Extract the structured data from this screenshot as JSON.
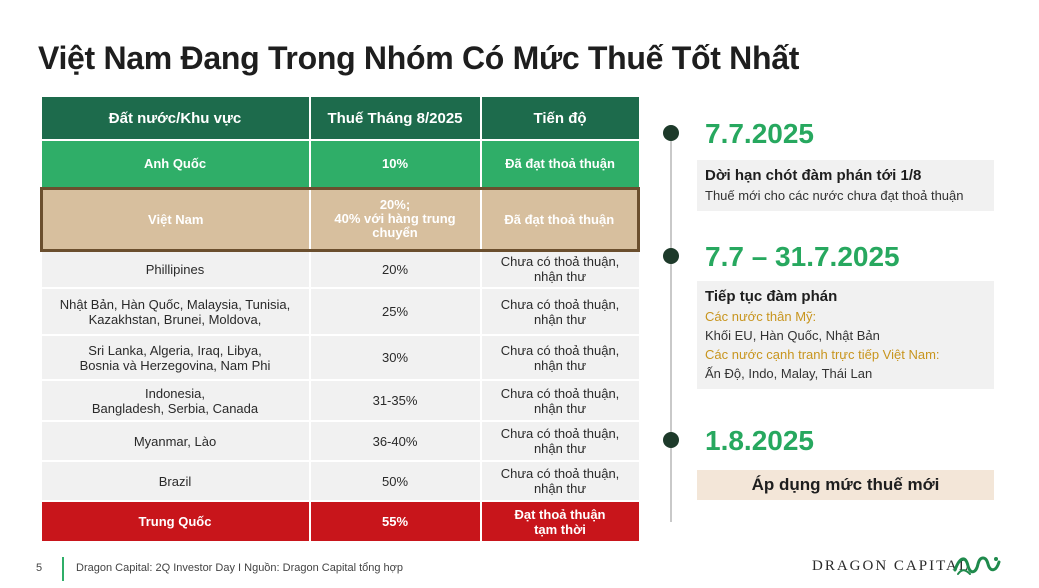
{
  "title": "Việt Nam Đang Trong Nhóm Có Mức Thuế Tốt Nhất",
  "table": {
    "headers": [
      "Đất nước/Khu vực",
      "Thuế Tháng 8/2025",
      "Tiến độ"
    ],
    "rows": [
      {
        "country": "Anh Quốc",
        "tax": "10%",
        "status": "Đã đạt thoả thuận"
      },
      {
        "country": "Việt Nam",
        "tax": "20%;\n40% với hàng trung chuyển",
        "status": "Đã đạt thoả thuận"
      },
      {
        "country": "Phillipines",
        "tax": "20%",
        "status": "Chưa có thoả thuận,\nnhận thư"
      },
      {
        "country": "Nhật Bản, Hàn Quốc, Malaysia, Tunisia,\nKazakhstan, Brunei, Moldova,",
        "tax": "25%",
        "status": "Chưa có thoả thuận,\nnhận thư"
      },
      {
        "country": "Sri Lanka, Algeria, Iraq, Libya,\nBosnia và Herzegovina, Nam Phi",
        "tax": "30%",
        "status": "Chưa có thoả thuận,\nnhận thư"
      },
      {
        "country": "Indonesia,\nBangladesh, Serbia, Canada",
        "tax": "31-35%",
        "status": "Chưa có thoả thuận,\nnhận thư"
      },
      {
        "country": "Myanmar, Lào",
        "tax": "36-40%",
        "status": "Chưa có thoả thuận,\nnhận thư"
      },
      {
        "country": "Brazil",
        "tax": "50%",
        "status": "Chưa có thoả thuận,\nnhận thư"
      },
      {
        "country": "Trung Quốc",
        "tax": "55%",
        "status": "Đạt thoả thuận\ntạm thời"
      }
    ]
  },
  "timeline": {
    "e1": {
      "date": "7.7.2025",
      "heading": "Dời hạn chót đàm phán tới 1/8",
      "text": "Thuế mới cho các nước chưa đạt thoả thuận"
    },
    "e2": {
      "date": "7.7 – 31.7.2025",
      "heading": "Tiếp tục đàm phán",
      "label1": "Các nước thân Mỹ:",
      "text1": "Khối EU, Hàn Quốc, Nhật Bản",
      "label2": "Các nước cạnh tranh trực tiếp  Việt Nam:",
      "text2": "Ấn Độ, Indo, Malay, Thái Lan"
    },
    "e3": {
      "date": "1.8.2025",
      "heading": "Áp dụng mức thuế mới"
    }
  },
  "footer": {
    "page": "5",
    "source": "Dragon Capital: 2Q Investor Day I Nguồn: Dragon Capital tổng hợp",
    "brand": "DRAGON CAPITAL"
  },
  "colors": {
    "header_green": "#1d6b4c",
    "accent_green": "#2fae68",
    "vietnam_tan": "#d7bf9e",
    "china_red": "#c8151b",
    "gold": "#c8951e"
  }
}
